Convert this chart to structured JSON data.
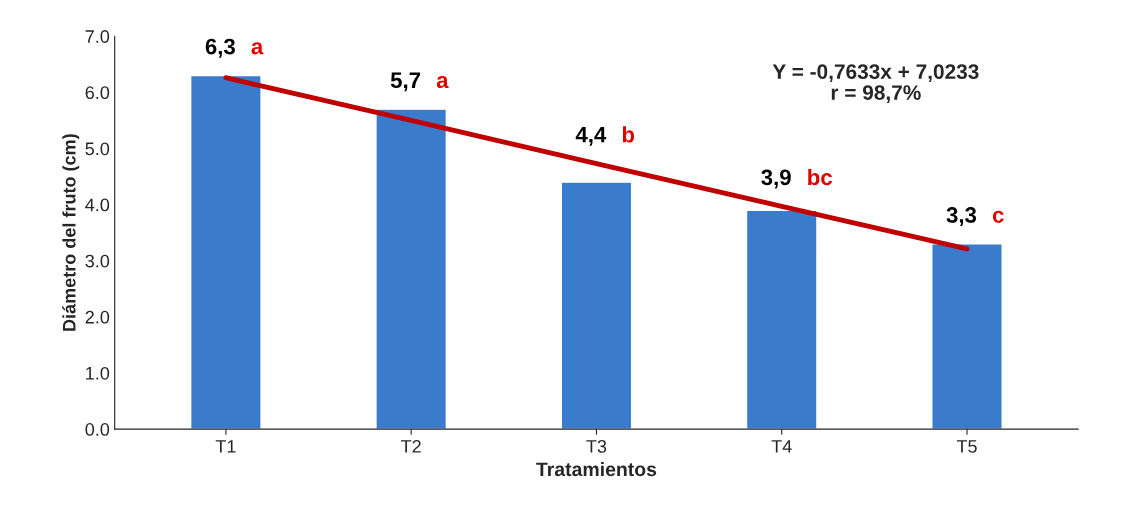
{
  "chart_data": {
    "type": "bar",
    "xlabel": "Tratamientos",
    "ylabel": "Diámetro del fruto (cm)",
    "categories": [
      "T1",
      "T2",
      "T3",
      "T4",
      "T5"
    ],
    "series": [
      {
        "color": "#3b7bcb",
        "values": [
          6.3,
          5.7,
          4.4,
          3.9,
          3.3
        ],
        "value_labels": [
          "6,3",
          "5,7",
          "4,4",
          "3,9",
          "3,3"
        ]
      },
      {
        "type": "line",
        "color": "#c00000",
        "values": [
          6.26,
          5.5,
          4.73,
          3.97,
          3.21
        ]
      }
    ],
    "ylim": [
      0,
      7
    ],
    "yticks": [
      {
        "value": 0,
        "label": "0.0"
      },
      {
        "value": 1,
        "label": "1.0"
      },
      {
        "value": 2,
        "label": "2.0"
      },
      {
        "value": 3,
        "label": "3.0"
      },
      {
        "value": 4,
        "label": "4.0"
      },
      {
        "value": 5,
        "label": "5.0"
      },
      {
        "value": 6,
        "label": "6.0"
      },
      {
        "value": 7,
        "label": "7.0"
      }
    ],
    "annotations": [
      {
        "text": "a",
        "x": "T1",
        "y": 6.3
      },
      {
        "text": "a",
        "x": "T2",
        "y": 5.7
      },
      {
        "text": "b",
        "x": "T3",
        "y": 4.4
      },
      {
        "text": "bc",
        "x": "T4",
        "y": 3.9
      },
      {
        "text": "c",
        "x": "T5",
        "y": 3.3
      },
      "Y = -0,7633x + 7,0233\nr = 98,7%"
    ]
  }
}
